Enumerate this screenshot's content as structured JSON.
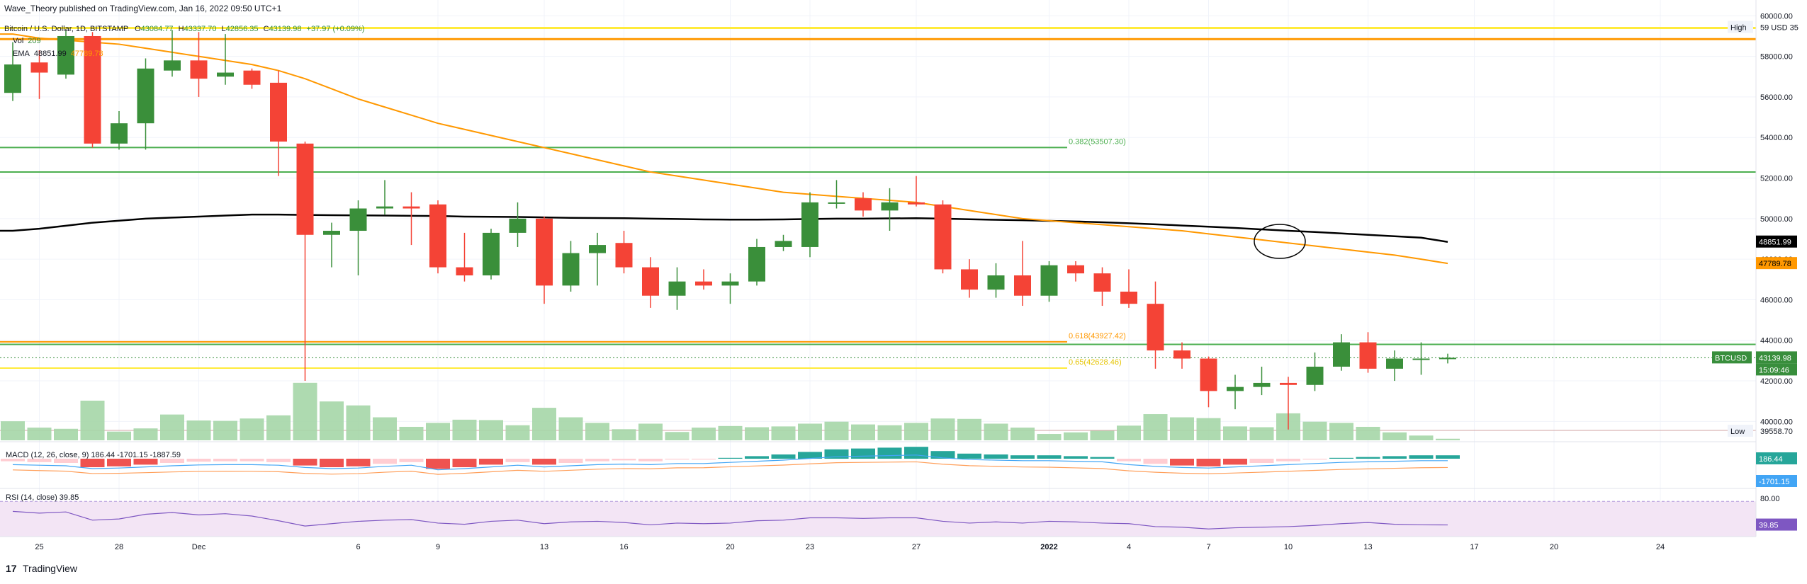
{
  "header": {
    "published": "Wave_Theory published on TradingView.com, Jan 16, 2022 09:50 UTC+1",
    "symbol": "Bitcoin / U.S. Dollar, 1D, BITSTAMP",
    "ohlc": {
      "o_label": "O",
      "o": "43084.77",
      "h_label": "H",
      "h": "43337.70",
      "l_label": "L",
      "l": "42856.35",
      "c_label": "C",
      "c": "43139.98",
      "change": "+37.97 (+0.09%)"
    },
    "vol_label": "Vol",
    "vol_value": "209",
    "ema_label": "EMA",
    "ema1": "48851.99",
    "ema2": "47789.78"
  },
  "footer_brand": "TradingView",
  "colors": {
    "up": "#3a8f3a",
    "down": "#f44336",
    "vol_up": "#a5d6a7",
    "vol_down": "#a5d6a7",
    "ema_fast": "#ff9800",
    "ema_slow": "#000000",
    "green_level": "#4caf50",
    "yellow_level": "#ffeb3b",
    "orange_level": "#ff9800",
    "macd_line": "#42a5f5",
    "signal_line": "#ff9f5a",
    "rsi_line": "#7e57c2",
    "rsi_bg": "#f3e5f5",
    "price_tag": "#388e3c"
  },
  "chart_data": {
    "type": "candlestick",
    "title": "Bitcoin / U.S. Dollar, 1D, BITSTAMP",
    "price_axis": {
      "min": 39000,
      "max": 60500,
      "ticks": [
        "60000.00",
        "58000.00",
        "56000.00",
        "54000.00",
        "52000.00",
        "50000.00",
        "48000.00",
        "46000.00",
        "44000.00",
        "42000.00",
        "40000.00"
      ]
    },
    "x_axis_labels": [
      {
        "label": "25",
        "idx": 1
      },
      {
        "label": "28",
        "idx": 4
      },
      {
        "label": "Dec",
        "idx": 7
      },
      {
        "label": "6",
        "idx": 13
      },
      {
        "label": "9",
        "idx": 16
      },
      {
        "label": "13",
        "idx": 20
      },
      {
        "label": "16",
        "idx": 23
      },
      {
        "label": "20",
        "idx": 27
      },
      {
        "label": "23",
        "idx": 30
      },
      {
        "label": "27",
        "idx": 34
      },
      {
        "label": "2022",
        "idx": 39
      },
      {
        "label": "4",
        "idx": 42
      },
      {
        "label": "7",
        "idx": 45
      },
      {
        "label": "10",
        "idx": 48
      },
      {
        "label": "13",
        "idx": 51
      },
      {
        "label": "17",
        "idx": 55
      },
      {
        "label": "20",
        "idx": 58
      },
      {
        "label": "24",
        "idx": 62
      }
    ],
    "candles": [
      {
        "o": 56200,
        "h": 58700,
        "l": 55800,
        "c": 57600
      },
      {
        "o": 57700,
        "h": 58300,
        "l": 55900,
        "c": 57200
      },
      {
        "o": 57100,
        "h": 59300,
        "l": 56900,
        "c": 59000
      },
      {
        "o": 59000,
        "h": 59200,
        "l": 53500,
        "c": 53700
      },
      {
        "o": 53700,
        "h": 55300,
        "l": 53400,
        "c": 54700
      },
      {
        "o": 54700,
        "h": 57900,
        "l": 53400,
        "c": 57400
      },
      {
        "o": 57300,
        "h": 59300,
        "l": 57000,
        "c": 57800
      },
      {
        "o": 57800,
        "h": 59200,
        "l": 56000,
        "c": 56900
      },
      {
        "o": 57000,
        "h": 59100,
        "l": 56600,
        "c": 57200
      },
      {
        "o": 57300,
        "h": 57400,
        "l": 56400,
        "c": 56600
      },
      {
        "o": 56700,
        "h": 57300,
        "l": 52100,
        "c": 53800
      },
      {
        "o": 53700,
        "h": 53800,
        "l": 42000,
        "c": 49200
      },
      {
        "o": 49200,
        "h": 49800,
        "l": 47600,
        "c": 49400
      },
      {
        "o": 49400,
        "h": 50900,
        "l": 47200,
        "c": 50500
      },
      {
        "o": 50500,
        "h": 51900,
        "l": 50200,
        "c": 50600
      },
      {
        "o": 50600,
        "h": 51300,
        "l": 48700,
        "c": 50500
      },
      {
        "o": 50700,
        "h": 50900,
        "l": 47300,
        "c": 47600
      },
      {
        "o": 47600,
        "h": 49300,
        "l": 46900,
        "c": 47200
      },
      {
        "o": 47200,
        "h": 49500,
        "l": 47000,
        "c": 49300
      },
      {
        "o": 49300,
        "h": 50800,
        "l": 48600,
        "c": 50000
      },
      {
        "o": 50000,
        "h": 50100,
        "l": 45800,
        "c": 46700
      },
      {
        "o": 46700,
        "h": 48900,
        "l": 46400,
        "c": 48300
      },
      {
        "o": 48300,
        "h": 49300,
        "l": 46700,
        "c": 48700
      },
      {
        "o": 48800,
        "h": 49400,
        "l": 47300,
        "c": 47600
      },
      {
        "o": 47600,
        "h": 48100,
        "l": 45600,
        "c": 46200
      },
      {
        "o": 46200,
        "h": 47600,
        "l": 45500,
        "c": 46900
      },
      {
        "o": 46900,
        "h": 47500,
        "l": 46500,
        "c": 46700
      },
      {
        "o": 46700,
        "h": 47300,
        "l": 45800,
        "c": 46900
      },
      {
        "o": 46900,
        "h": 49000,
        "l": 46700,
        "c": 48600
      },
      {
        "o": 48600,
        "h": 49200,
        "l": 48400,
        "c": 48900
      },
      {
        "o": 48600,
        "h": 51300,
        "l": 48100,
        "c": 50800
      },
      {
        "o": 50800,
        "h": 51900,
        "l": 50500,
        "c": 50800
      },
      {
        "o": 51000,
        "h": 51300,
        "l": 50100,
        "c": 50400
      },
      {
        "o": 50400,
        "h": 51500,
        "l": 49400,
        "c": 50800
      },
      {
        "o": 50800,
        "h": 52100,
        "l": 50600,
        "c": 50700
      },
      {
        "o": 50700,
        "h": 50900,
        "l": 47300,
        "c": 47500
      },
      {
        "o": 47500,
        "h": 48000,
        "l": 46100,
        "c": 46500
      },
      {
        "o": 46500,
        "h": 47800,
        "l": 46100,
        "c": 47200
      },
      {
        "o": 47200,
        "h": 48900,
        "l": 45700,
        "c": 46200
      },
      {
        "o": 46200,
        "h": 47900,
        "l": 45900,
        "c": 47700
      },
      {
        "o": 47700,
        "h": 47900,
        "l": 46900,
        "c": 47300
      },
      {
        "o": 47300,
        "h": 47600,
        "l": 45700,
        "c": 46400
      },
      {
        "o": 46400,
        "h": 47500,
        "l": 45600,
        "c": 45800
      },
      {
        "o": 45800,
        "h": 46900,
        "l": 42600,
        "c": 43500
      },
      {
        "o": 43500,
        "h": 43900,
        "l": 42600,
        "c": 43100
      },
      {
        "o": 43100,
        "h": 43200,
        "l": 40700,
        "c": 41500
      },
      {
        "o": 41500,
        "h": 42300,
        "l": 40600,
        "c": 41700
      },
      {
        "o": 41700,
        "h": 42700,
        "l": 41300,
        "c": 41900
      },
      {
        "o": 41900,
        "h": 42200,
        "l": 39600,
        "c": 41800
      },
      {
        "o": 41800,
        "h": 43400,
        "l": 41500,
        "c": 42700
      },
      {
        "o": 42700,
        "h": 44300,
        "l": 42500,
        "c": 43900
      },
      {
        "o": 43900,
        "h": 44400,
        "l": 42400,
        "c": 42600
      },
      {
        "o": 42600,
        "h": 43500,
        "l": 42000,
        "c": 43100
      },
      {
        "o": 43100,
        "h": 43900,
        "l": 42300,
        "c": 43100
      },
      {
        "o": 43080,
        "h": 43340,
        "l": 42860,
        "c": 43140
      }
    ],
    "volumes": [
      0.48,
      0.32,
      0.29,
      1.0,
      0.22,
      0.3,
      0.65,
      0.5,
      0.49,
      0.55,
      0.63,
      1.45,
      0.98,
      0.88,
      0.58,
      0.34,
      0.44,
      0.52,
      0.51,
      0.38,
      0.82,
      0.58,
      0.44,
      0.28,
      0.42,
      0.21,
      0.32,
      0.36,
      0.33,
      0.35,
      0.42,
      0.47,
      0.4,
      0.38,
      0.44,
      0.55,
      0.54,
      0.42,
      0.32,
      0.16,
      0.2,
      0.24,
      0.37,
      0.66,
      0.58,
      0.56,
      0.35,
      0.33,
      0.68,
      0.47,
      0.44,
      0.34,
      0.2,
      0.12,
      0.04
    ],
    "ema_slow": [
      49400,
      49500,
      49650,
      49800,
      49900,
      50000,
      50050,
      50100,
      50150,
      50200,
      50200,
      50180,
      50170,
      50160,
      50150,
      50140,
      50130,
      50100,
      50090,
      50080,
      50060,
      50040,
      50030,
      50020,
      50000,
      49980,
      49960,
      49950,
      49950,
      49960,
      49980,
      50000,
      50000,
      50010,
      50020,
      50000,
      49970,
      49940,
      49920,
      49890,
      49860,
      49820,
      49770,
      49720,
      49660,
      49600,
      49540,
      49470,
      49400,
      49340,
      49270,
      49200,
      49130,
      49060,
      48851.99
    ],
    "ema_fast": [
      59100,
      58900,
      58800,
      58700,
      58600,
      58400,
      58200,
      58000,
      57800,
      57600,
      57300,
      56900,
      56400,
      55900,
      55500,
      55100,
      54700,
      54400,
      54100,
      53800,
      53500,
      53200,
      52900,
      52600,
      52300,
      52100,
      51900,
      51700,
      51500,
      51300,
      51200,
      51100,
      51000,
      50900,
      50800,
      50600,
      50400,
      50200,
      50000,
      49900,
      49800,
      49700,
      49600,
      49500,
      49400,
      49250,
      49100,
      48950,
      48800,
      48650,
      48500,
      48350,
      48200,
      48000,
      47789.78
    ],
    "levels": [
      {
        "price": 59400,
        "color": "#ffeb3b",
        "width": 3,
        "label": ""
      },
      {
        "price": 58850,
        "color": "#ff9800",
        "width": 3,
        "label": ""
      },
      {
        "price": 53507.3,
        "color": "#4caf50",
        "width": 2,
        "label": "0.382(53507.30)"
      },
      {
        "price": 52300,
        "color": "#4caf50",
        "width": 2,
        "label": ""
      },
      {
        "price": 43927.42,
        "color": "#ff9800",
        "width": 2,
        "label": "0.618(43927.42)"
      },
      {
        "price": 43800,
        "color": "#4caf50",
        "width": 2,
        "label": ""
      },
      {
        "price": 42628.46,
        "color": "#ffeb3b",
        "width": 2,
        "label": "0.65(42628.46)"
      },
      {
        "price": 39558.7,
        "color": "#d1a3a3",
        "width": 1,
        "label": ""
      }
    ],
    "price_tags": [
      {
        "text": "48851.99",
        "bg": "#000000",
        "fg": "#ffffff",
        "price": 48851.99
      },
      {
        "text": "47789.78",
        "bg": "#ff9800",
        "fg": "#000000",
        "price": 47789.78
      },
      {
        "text": "43139.98",
        "bg": "#388e3c",
        "fg": "#ffffff",
        "price": 43139.98
      }
    ],
    "symbol_tag": "BTCUSD",
    "countdown": "15:09:46",
    "high_tag": "High",
    "high_value": "59 USD 35",
    "low_tag": "Low",
    "low_value": "39558.70",
    "macd": {
      "label": "MACD (12, 26, close, 9)",
      "values": [
        "186.44",
        "-1701.15",
        "-1887.59"
      ],
      "hist": [
        -0.3,
        -0.4,
        -0.5,
        -1.0,
        -0.9,
        -0.7,
        -0.5,
        -0.35,
        -0.3,
        -0.3,
        -0.4,
        -0.8,
        -1.0,
        -0.9,
        -0.6,
        -0.4,
        -1.2,
        -1.0,
        -0.7,
        -0.4,
        -0.7,
        -0.5,
        -0.3,
        -0.2,
        -0.3,
        -0.1,
        -0.1,
        0.1,
        0.3,
        0.5,
        0.8,
        1.1,
        1.2,
        1.3,
        1.4,
        0.9,
        0.6,
        0.5,
        0.4,
        0.4,
        0.3,
        0.2,
        -0.3,
        -0.6,
        -0.8,
        -0.9,
        -0.7,
        -0.5,
        -0.3,
        -0.1,
        0.1,
        0.2,
        0.3,
        0.4,
        0.4
      ],
      "tag_macd": "186.44",
      "tag_signal": "-1701.15"
    },
    "rsi": {
      "label": "RSI (14, close)",
      "value": "39.85",
      "upper": "80.00",
      "series": [
        63,
        60,
        62,
        48,
        50,
        58,
        61,
        57,
        59,
        55,
        47,
        38,
        42,
        46,
        48,
        49,
        43,
        41,
        46,
        48,
        42,
        45,
        46,
        44,
        40,
        43,
        42,
        43,
        47,
        48,
        52,
        52,
        51,
        52,
        52,
        46,
        43,
        45,
        43,
        46,
        45,
        43,
        42,
        37,
        36,
        33,
        35,
        36,
        37,
        39,
        42,
        44,
        41,
        40,
        39.85
      ]
    }
  }
}
